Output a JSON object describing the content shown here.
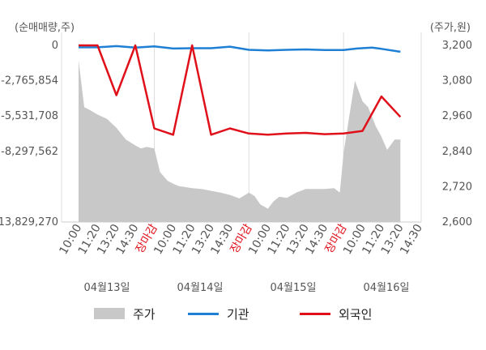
{
  "chart_data": {
    "type": "line",
    "left_axis": {
      "unit_label": "(순매매량,주)",
      "ticks": [
        "0",
        "-2,765,854",
        "-5,531,708",
        "-8,297,562",
        "-13,829,270"
      ],
      "tick_values": [
        0,
        -2765854,
        -5531708,
        -8297562,
        -13829270
      ],
      "range": [
        -13829270,
        0
      ]
    },
    "right_axis": {
      "unit_label": "(주가,원)",
      "ticks": [
        "3,200",
        "3,080",
        "2,960",
        "2,840",
        "2,720",
        "2,600"
      ],
      "tick_values": [
        3200,
        3080,
        2960,
        2840,
        2720,
        2600
      ],
      "range": [
        2600,
        3200
      ]
    },
    "x_ticks": [
      {
        "label": "10:00",
        "red": false
      },
      {
        "label": "11:20",
        "red": false
      },
      {
        "label": "13:20",
        "red": false
      },
      {
        "label": "14:30",
        "red": false
      },
      {
        "label": "장마감",
        "red": true
      },
      {
        "label": "10:00",
        "red": false
      },
      {
        "label": "11:20",
        "red": false
      },
      {
        "label": "13:20",
        "red": false
      },
      {
        "label": "14:30",
        "red": false
      },
      {
        "label": "장마감",
        "red": true
      },
      {
        "label": "10:00",
        "red": false
      },
      {
        "label": "11:20",
        "red": false
      },
      {
        "label": "13:20",
        "red": false
      },
      {
        "label": "14:30",
        "red": false
      },
      {
        "label": "장마감",
        "red": true
      },
      {
        "label": "10:00",
        "red": false
      },
      {
        "label": "11:20",
        "red": false
      },
      {
        "label": "13:20",
        "red": false
      },
      {
        "label": "14:30",
        "red": false
      }
    ],
    "dates": [
      "04월13일",
      "04월14일",
      "04월15일",
      "04월16일"
    ],
    "series": [
      {
        "name": "주가",
        "kind": "area",
        "axis": "right",
        "color": "#c8c8c8",
        "x": [
          0,
          0.3,
          0.6,
          1,
          1.5,
          2,
          2.5,
          3,
          3.3,
          3.6,
          4,
          4.3,
          4.7,
          5,
          5.3,
          5.7,
          6,
          6.5,
          7,
          7.5,
          8,
          8.5,
          9,
          9.3,
          9.6,
          10,
          10.3,
          10.6,
          11,
          11.5,
          12,
          12.5,
          13,
          13.5,
          13.8,
          14,
          14.3,
          14.6,
          15,
          15.3,
          15.7,
          16,
          16.3,
          16.7,
          17
        ],
        "y": [
          3150,
          2990,
          2980,
          2965,
          2950,
          2920,
          2880,
          2860,
          2850,
          2855,
          2850,
          2770,
          2740,
          2730,
          2722,
          2718,
          2715,
          2712,
          2706,
          2700,
          2692,
          2680,
          2700,
          2688,
          2660,
          2645,
          2670,
          2686,
          2682,
          2700,
          2712,
          2712,
          2712,
          2715,
          2700,
          2835,
          2960,
          3080,
          3010,
          2990,
          2925,
          2890,
          2845,
          2880,
          2880
        ]
      },
      {
        "name": "기관",
        "kind": "line",
        "axis": "left",
        "color": "#1f7fd4",
        "x": [
          0,
          1,
          2,
          3,
          4,
          5,
          6,
          7,
          8,
          9,
          10,
          11,
          12,
          13,
          14,
          14.7,
          15.5,
          16,
          17
        ],
        "y": [
          -150000,
          -150000,
          -60000,
          -170000,
          -80000,
          -250000,
          -220000,
          -220000,
          -100000,
          -350000,
          -400000,
          -350000,
          -320000,
          -370000,
          -360000,
          -250000,
          -180000,
          -270000,
          -500000
        ]
      },
      {
        "name": "외국인",
        "kind": "line",
        "axis": "left",
        "color": "#e0101a",
        "x": [
          0,
          1,
          2,
          3,
          4,
          5,
          6,
          7,
          8,
          9,
          10,
          11,
          12,
          13,
          14,
          15,
          16,
          17
        ],
        "y": [
          0,
          0,
          -3900000,
          0,
          -6500000,
          -7000000,
          0,
          -7000000,
          -6500000,
          -6900000,
          -7000000,
          -6900000,
          -6850000,
          -6950000,
          -6900000,
          -6700000,
          -4000000,
          -5600000
        ]
      }
    ],
    "legend_position": "bottom",
    "grid": true
  }
}
